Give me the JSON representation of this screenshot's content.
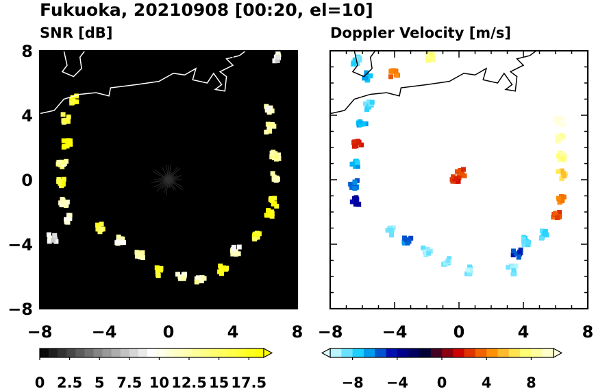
{
  "title": "Fukuoka, 20210908 [00:20, el=10]",
  "chart_data": [
    {
      "type": "heatmap",
      "title": "SNR [dB]",
      "xlim": [
        -8,
        8
      ],
      "ylim": [
        -8,
        8
      ],
      "xticks": [
        "-8",
        "-4",
        "0",
        "4",
        "8"
      ],
      "yticks": [
        "8",
        "4",
        "0",
        "-4",
        "-8"
      ],
      "background": "#000000",
      "colorbar": {
        "min": 0,
        "max": 18.75,
        "levels": 25,
        "extend": "max",
        "ticks": [
          "0",
          "2.5",
          "5",
          "7.5",
          "10",
          "12.5",
          "15",
          "17.5"
        ],
        "tick_values": [
          0,
          2.5,
          5,
          7.5,
          10,
          12.5,
          15,
          17.5
        ],
        "colors": [
          "#000000",
          "#ffffff",
          "#ffff00"
        ]
      },
      "echo_ring": [
        {
          "x": -5.9,
          "y": 5.0,
          "v": 17
        },
        {
          "x": -6.3,
          "y": 3.8,
          "v": 16
        },
        {
          "x": -6.3,
          "y": 2.2,
          "v": 19
        },
        {
          "x": -6.6,
          "y": 1.0,
          "v": 13
        },
        {
          "x": -6.7,
          "y": -0.2,
          "v": 17
        },
        {
          "x": -6.5,
          "y": -1.4,
          "v": 12
        },
        {
          "x": -6.3,
          "y": -2.4,
          "v": 10
        },
        {
          "x": -7.2,
          "y": -3.6,
          "v": 9
        },
        {
          "x": -4.2,
          "y": -3.0,
          "v": 16
        },
        {
          "x": -3.0,
          "y": -3.8,
          "v": 11
        },
        {
          "x": -1.8,
          "y": -4.6,
          "v": 12
        },
        {
          "x": -0.6,
          "y": -5.7,
          "v": 18
        },
        {
          "x": 0.8,
          "y": -6.0,
          "v": 11
        },
        {
          "x": 2.0,
          "y": -6.3,
          "v": 12
        },
        {
          "x": 3.4,
          "y": -5.6,
          "v": 18
        },
        {
          "x": 4.2,
          "y": -4.4,
          "v": 11
        },
        {
          "x": 5.5,
          "y": -3.5,
          "v": 17
        },
        {
          "x": 6.2,
          "y": -2.1,
          "v": 18
        },
        {
          "x": 6.5,
          "y": -1.4,
          "v": 19
        },
        {
          "x": 6.7,
          "y": 0.2,
          "v": 12
        },
        {
          "x": 6.6,
          "y": 1.5,
          "v": 13
        },
        {
          "x": 6.3,
          "y": 3.2,
          "v": 12
        },
        {
          "x": 6.2,
          "y": 4.4,
          "v": 11
        },
        {
          "x": 6.8,
          "y": 7.6,
          "v": 9
        }
      ]
    },
    {
      "type": "heatmap",
      "title": "Doppler Velocity [m/s]",
      "xlim": [
        -8,
        8
      ],
      "ylim": [
        -8,
        8
      ],
      "xticks": [
        "-8",
        "-4",
        "0",
        "4",
        "8"
      ],
      "yticks": [],
      "background": "#ffffff",
      "colorbar": {
        "min": -10,
        "max": 10,
        "levels": 20,
        "extend": "both",
        "ticks": [
          "−8",
          "−4",
          "0",
          "4",
          "8"
        ],
        "tick_values": [
          -8,
          -4,
          0,
          4,
          8
        ],
        "colors": [
          "#e0ffff",
          "#00c8ff",
          "#0000aa",
          "#000033",
          "#cc0000",
          "#ff8800",
          "#ffff66",
          "#ffffe0"
        ]
      },
      "echo_ring": [
        {
          "x": -5.6,
          "y": 4.6,
          "v": -8
        },
        {
          "x": -6.0,
          "y": 3.4,
          "v": -7
        },
        {
          "x": -6.3,
          "y": 2.2,
          "v": 2
        },
        {
          "x": -6.4,
          "y": 1.0,
          "v": -7
        },
        {
          "x": -6.5,
          "y": -0.3,
          "v": -6
        },
        {
          "x": -6.4,
          "y": -1.3,
          "v": -4
        },
        {
          "x": -4.2,
          "y": -3.2,
          "v": -9
        },
        {
          "x": -3.2,
          "y": -3.8,
          "v": -6
        },
        {
          "x": -2.0,
          "y": -4.4,
          "v": -9
        },
        {
          "x": -0.8,
          "y": -5.0,
          "v": -9
        },
        {
          "x": 0.6,
          "y": -5.6,
          "v": -9
        },
        {
          "x": 3.3,
          "y": -5.6,
          "v": -9
        },
        {
          "x": 3.6,
          "y": -4.6,
          "v": -5
        },
        {
          "x": 4.1,
          "y": -3.8,
          "v": -8
        },
        {
          "x": 5.2,
          "y": -3.4,
          "v": -8
        },
        {
          "x": 6.1,
          "y": -2.2,
          "v": 3
        },
        {
          "x": 6.3,
          "y": -1.2,
          "v": 4
        },
        {
          "x": 6.4,
          "y": 0.3,
          "v": 6
        },
        {
          "x": 6.4,
          "y": 1.4,
          "v": 8
        },
        {
          "x": 6.3,
          "y": 2.6,
          "v": 9
        },
        {
          "x": 6.2,
          "y": 3.6,
          "v": 10
        },
        {
          "x": 0.1,
          "y": 0.4,
          "v": 3
        },
        {
          "x": -0.2,
          "y": 0.1,
          "v": 2
        },
        {
          "x": -6.4,
          "y": 7.4,
          "v": -8
        },
        {
          "x": -5.7,
          "y": 6.4,
          "v": -7
        },
        {
          "x": -4.0,
          "y": 6.6,
          "v": 4
        },
        {
          "x": -1.8,
          "y": 7.6,
          "v": 8
        }
      ]
    }
  ]
}
